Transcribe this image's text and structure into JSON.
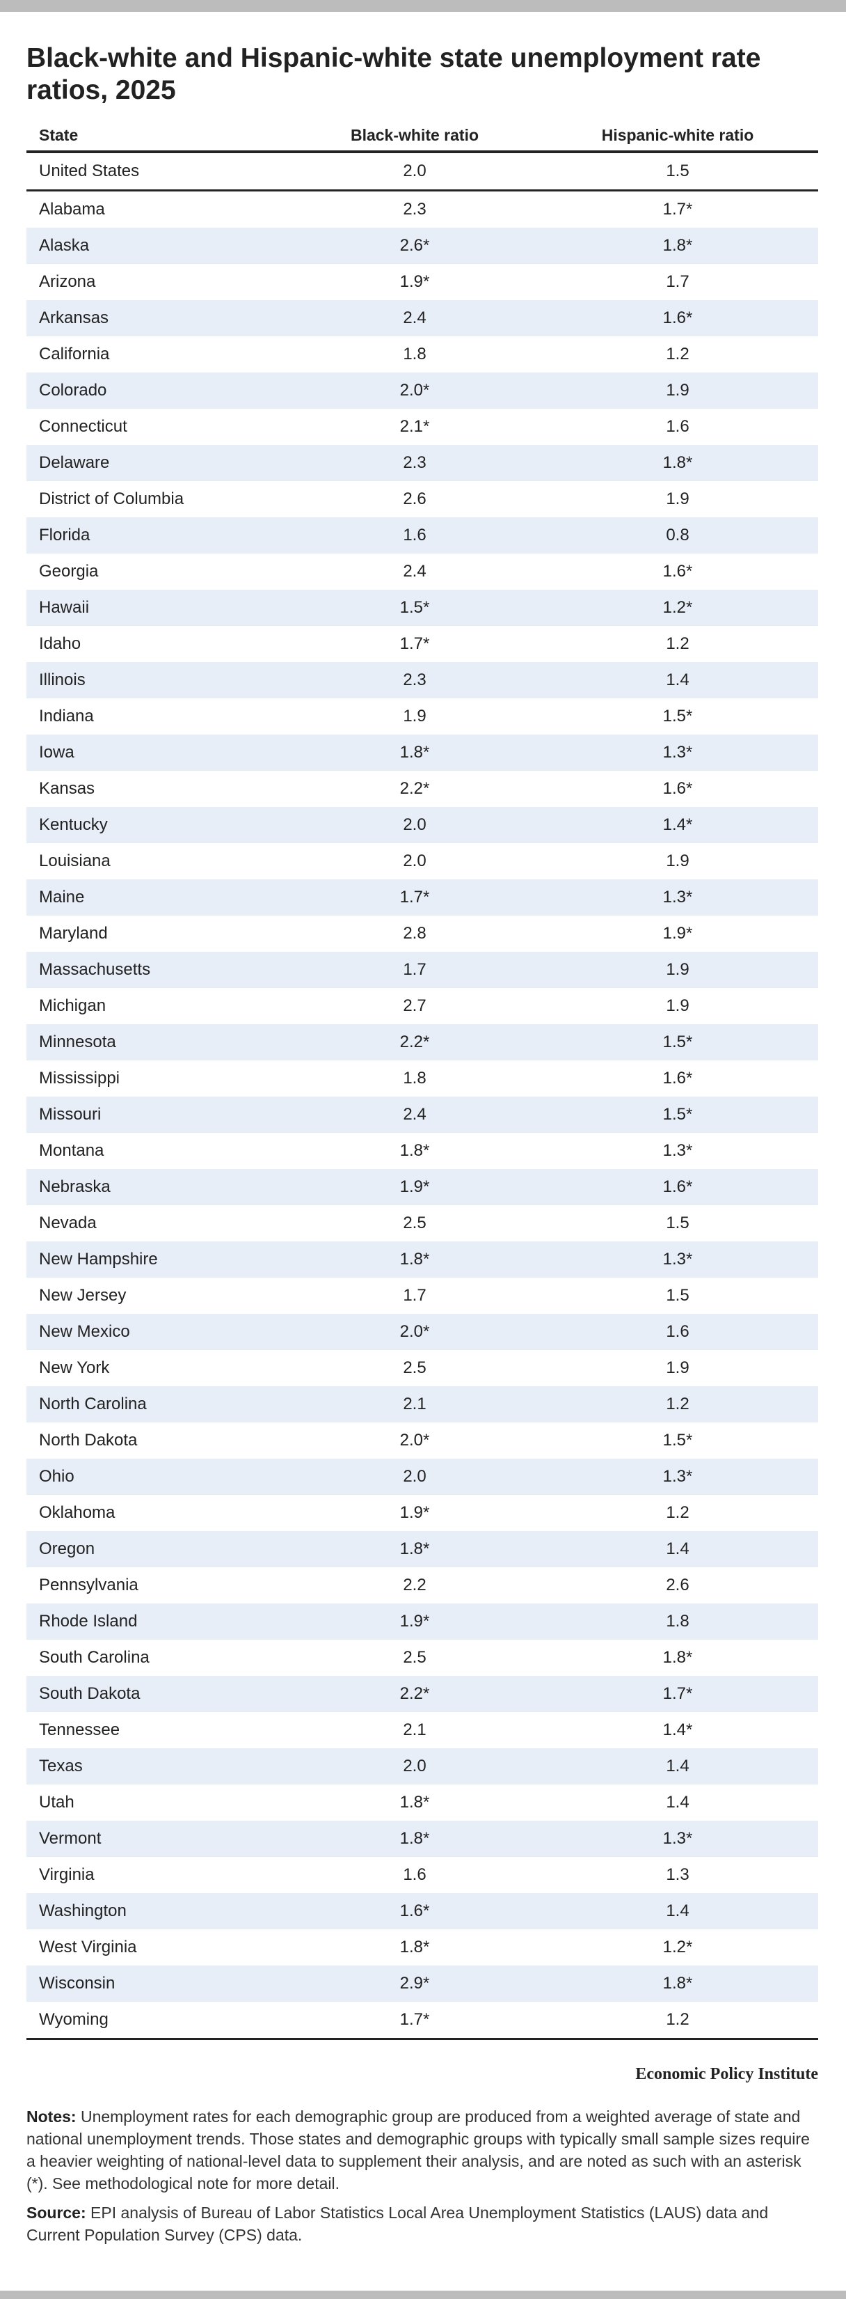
{
  "title": "Black-white and Hispanic-white state unemployment rate ratios, 2025",
  "table": {
    "columns": [
      "State",
      "Black-white ratio",
      "Hispanic-white ratio"
    ],
    "rows": [
      [
        "United States",
        "2.0",
        "1.5"
      ],
      [
        "Alabama",
        "2.3",
        "1.7*"
      ],
      [
        "Alaska",
        "2.6*",
        "1.8*"
      ],
      [
        "Arizona",
        "1.9*",
        "1.7"
      ],
      [
        "Arkansas",
        "2.4",
        "1.6*"
      ],
      [
        "California",
        "1.8",
        "1.2"
      ],
      [
        "Colorado",
        "2.0*",
        "1.9"
      ],
      [
        "Connecticut",
        "2.1*",
        "1.6"
      ],
      [
        "Delaware",
        "2.3",
        "1.8*"
      ],
      [
        "District of Columbia",
        "2.6",
        "1.9"
      ],
      [
        "Florida",
        "1.6",
        "0.8"
      ],
      [
        "Georgia",
        "2.4",
        "1.6*"
      ],
      [
        "Hawaii",
        "1.5*",
        "1.2*"
      ],
      [
        "Idaho",
        "1.7*",
        "1.2"
      ],
      [
        "Illinois",
        "2.3",
        "1.4"
      ],
      [
        "Indiana",
        "1.9",
        "1.5*"
      ],
      [
        "Iowa",
        "1.8*",
        "1.3*"
      ],
      [
        "Kansas",
        "2.2*",
        "1.6*"
      ],
      [
        "Kentucky",
        "2.0",
        "1.4*"
      ],
      [
        "Louisiana",
        "2.0",
        "1.9"
      ],
      [
        "Maine",
        "1.7*",
        "1.3*"
      ],
      [
        "Maryland",
        "2.8",
        "1.9*"
      ],
      [
        "Massachusetts",
        "1.7",
        "1.9"
      ],
      [
        "Michigan",
        "2.7",
        "1.9"
      ],
      [
        "Minnesota",
        "2.2*",
        "1.5*"
      ],
      [
        "Mississippi",
        "1.8",
        "1.6*"
      ],
      [
        "Missouri",
        "2.4",
        "1.5*"
      ],
      [
        "Montana",
        "1.8*",
        "1.3*"
      ],
      [
        "Nebraska",
        "1.9*",
        "1.6*"
      ],
      [
        "Nevada",
        "2.5",
        "1.5"
      ],
      [
        "New Hampshire",
        "1.8*",
        "1.3*"
      ],
      [
        "New Jersey",
        "1.7",
        "1.5"
      ],
      [
        "New Mexico",
        "2.0*",
        "1.6"
      ],
      [
        "New York",
        "2.5",
        "1.9"
      ],
      [
        "North Carolina",
        "2.1",
        "1.2"
      ],
      [
        "North Dakota",
        "2.0*",
        "1.5*"
      ],
      [
        "Ohio",
        "2.0",
        "1.3*"
      ],
      [
        "Oklahoma",
        "1.9*",
        "1.2"
      ],
      [
        "Oregon",
        "1.8*",
        "1.4"
      ],
      [
        "Pennsylvania",
        "2.2",
        "2.6"
      ],
      [
        "Rhode Island",
        "1.9*",
        "1.8"
      ],
      [
        "South Carolina",
        "2.5",
        "1.8*"
      ],
      [
        "South Dakota",
        "2.2*",
        "1.7*"
      ],
      [
        "Tennessee",
        "2.1",
        "1.4*"
      ],
      [
        "Texas",
        "2.0",
        "1.4"
      ],
      [
        "Utah",
        "1.8*",
        "1.4"
      ],
      [
        "Vermont",
        "1.8*",
        "1.3*"
      ],
      [
        "Virginia",
        "1.6",
        "1.3"
      ],
      [
        "Washington",
        "1.6*",
        "1.4"
      ],
      [
        "West Virginia",
        "1.8*",
        "1.2*"
      ],
      [
        "Wisconsin",
        "2.9*",
        "1.8*"
      ],
      [
        "Wyoming",
        "1.7*",
        "1.2"
      ]
    ]
  },
  "credit": "Economic Policy Institute",
  "notes": {
    "label": "Notes:",
    "text": "Unemployment rates for each demographic group are produced from a weighted average of state and national unemployment trends. Those states and demographic groups with typically small sample sizes require a heavier weighting of national-level data to supplement their analysis, and are noted as such with an asterisk (*). See methodological note for more detail."
  },
  "source": {
    "label": "Source:",
    "text": "EPI analysis of Bureau of Labor Statistics Local Area Unemployment Statistics (LAUS) data and Current Population Survey (CPS) data."
  }
}
